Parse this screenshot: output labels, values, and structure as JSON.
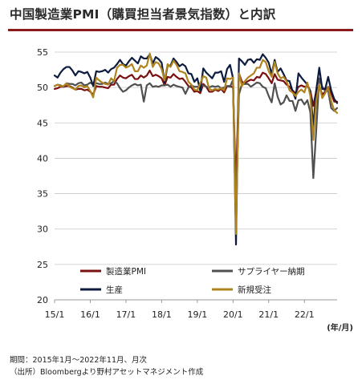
{
  "title": "中国製造業PMI（購買担当者景気指数）と内訳",
  "notes": {
    "period": "期間：2015年1月～2022年11月、月次",
    "source": "（出所）Bloombergより野村アセットマネジメント作成"
  },
  "chart_data": {
    "type": "line",
    "x_tick_labels": [
      "15/1",
      "16/1",
      "17/1",
      "18/1",
      "19/1",
      "20/1",
      "21/1",
      "22/1"
    ],
    "x_unit_label": "(年/月)",
    "x_start": "2015-01",
    "x_end": "2022-11",
    "ylim": [
      20,
      55
    ],
    "y_ticks": [
      20,
      25,
      30,
      35,
      40,
      45,
      50,
      55
    ],
    "grid": "horizontal",
    "legend": "bottom inside plot, two columns",
    "series": [
      {
        "name": "製造業PMI",
        "color": "#7b1010",
        "values": [
          49.8,
          49.9,
          50.1,
          50.1,
          50.2,
          50.2,
          50.0,
          49.7,
          49.8,
          49.8,
          49.6,
          49.7,
          49.4,
          49.0,
          50.2,
          50.1,
          50.1,
          50.0,
          49.9,
          50.4,
          50.4,
          51.2,
          51.7,
          51.4,
          51.3,
          51.6,
          51.8,
          51.2,
          51.2,
          51.7,
          51.4,
          51.7,
          52.4,
          51.6,
          51.8,
          51.6,
          51.3,
          50.3,
          51.5,
          51.4,
          51.9,
          51.5,
          51.2,
          51.3,
          50.8,
          50.2,
          50.0,
          49.4,
          49.5,
          49.2,
          50.5,
          50.1,
          49.4,
          49.4,
          49.7,
          49.5,
          49.8,
          49.3,
          50.2,
          50.2,
          50.0,
          35.7,
          52.0,
          50.8,
          50.6,
          50.9,
          51.1,
          51.0,
          51.5,
          51.4,
          52.1,
          51.9,
          51.3,
          50.6,
          51.9,
          51.1,
          51.0,
          50.9,
          50.4,
          50.1,
          49.6,
          49.2,
          50.1,
          50.3,
          50.1,
          50.2,
          49.5,
          47.4,
          49.6,
          50.2,
          49.0,
          49.4,
          50.1,
          49.2,
          48.0,
          48.0
        ]
      },
      {
        "name": "サプライヤー納期",
        "color": "#505050",
        "values": [
          50.2,
          50.4,
          50.3,
          50.1,
          50.6,
          50.5,
          50.5,
          50.3,
          50.6,
          50.7,
          50.3,
          50.4,
          50.7,
          50.4,
          50.6,
          50.5,
          50.5,
          50.7,
          50.5,
          50.6,
          50.9,
          50.6,
          49.9,
          49.4,
          49.6,
          50.0,
          50.3,
          50.5,
          50.3,
          50.4,
          48.0,
          50.3,
          50.6,
          50.1,
          50.2,
          50.1,
          50.3,
          50.3,
          50.4,
          50.1,
          50.4,
          50.2,
          50.1,
          50.0,
          49.1,
          50.0,
          50.3,
          50.1,
          50.1,
          50.2,
          50.3,
          50.1,
          50.0,
          50.2,
          50.1,
          50.2,
          49.9,
          50.0,
          50.2,
          50.1,
          51.1,
          32.1,
          49.0,
          50.5,
          50.5,
          50.5,
          50.1,
          50.4,
          50.7,
          50.6,
          50.1,
          49.9,
          48.8,
          47.9,
          50.6,
          48.7,
          47.6,
          47.9,
          48.9,
          48.1,
          48.1,
          46.7,
          48.2,
          48.3,
          47.6,
          48.2,
          46.5,
          37.2,
          44.1,
          51.3,
          50.1,
          49.5,
          49.5,
          47.1,
          46.7,
          47.1
        ]
      },
      {
        "name": "生産",
        "color": "#0d1b3e",
        "values": [
          51.7,
          51.4,
          52.1,
          52.6,
          52.9,
          52.9,
          52.4,
          51.7,
          52.3,
          52.2,
          52.0,
          52.2,
          51.4,
          50.2,
          52.3,
          52.2,
          52.3,
          52.5,
          52.1,
          52.6,
          52.8,
          53.3,
          53.9,
          53.3,
          53.1,
          53.7,
          54.2,
          53.8,
          53.4,
          54.4,
          54.1,
          54.1,
          54.7,
          53.4,
          54.3,
          54.0,
          53.5,
          50.7,
          53.1,
          53.1,
          54.1,
          53.6,
          53.0,
          53.3,
          53.0,
          52.0,
          51.9,
          50.8,
          51.3,
          49.5,
          52.7,
          52.1,
          51.7,
          51.3,
          52.1,
          52.1,
          52.3,
          50.8,
          52.6,
          53.2,
          51.3,
          27.8,
          54.1,
          53.7,
          53.2,
          53.9,
          54.0,
          53.5,
          54.0,
          53.9,
          54.7,
          54.2,
          53.5,
          51.9,
          53.9,
          52.2,
          52.7,
          51.9,
          51.0,
          50.9,
          49.5,
          48.4,
          52.0,
          51.4,
          50.9,
          50.4,
          49.5,
          44.5,
          49.7,
          52.8,
          49.8,
          49.8,
          51.5,
          49.6,
          48.4,
          47.8
        ]
      },
      {
        "name": "新規受注",
        "color": "#b0841c",
        "values": [
          50.2,
          50.4,
          50.2,
          50.2,
          50.6,
          50.1,
          49.9,
          49.7,
          50.2,
          50.3,
          50.0,
          50.2,
          49.5,
          48.6,
          51.4,
          51.0,
          50.7,
          50.5,
          50.4,
          51.3,
          50.9,
          52.8,
          53.2,
          53.2,
          52.8,
          53.0,
          53.3,
          52.3,
          52.3,
          53.1,
          52.8,
          53.1,
          54.8,
          52.9,
          53.6,
          53.4,
          52.6,
          51.0,
          53.3,
          52.9,
          53.8,
          53.2,
          52.3,
          52.2,
          52.0,
          50.8,
          50.4,
          49.7,
          49.6,
          50.6,
          51.6,
          51.4,
          49.8,
          49.6,
          49.8,
          49.7,
          49.9,
          49.6,
          51.3,
          51.2,
          51.4,
          29.3,
          52.0,
          50.2,
          50.9,
          51.4,
          51.7,
          52.0,
          52.8,
          52.8,
          53.9,
          53.6,
          52.3,
          51.5,
          53.6,
          52.0,
          51.3,
          51.5,
          50.9,
          49.6,
          49.3,
          48.8,
          49.4,
          49.7,
          49.3,
          50.7,
          48.8,
          42.6,
          48.2,
          50.4,
          48.5,
          49.2,
          50.0,
          48.1,
          46.8,
          46.4
        ]
      }
    ]
  }
}
